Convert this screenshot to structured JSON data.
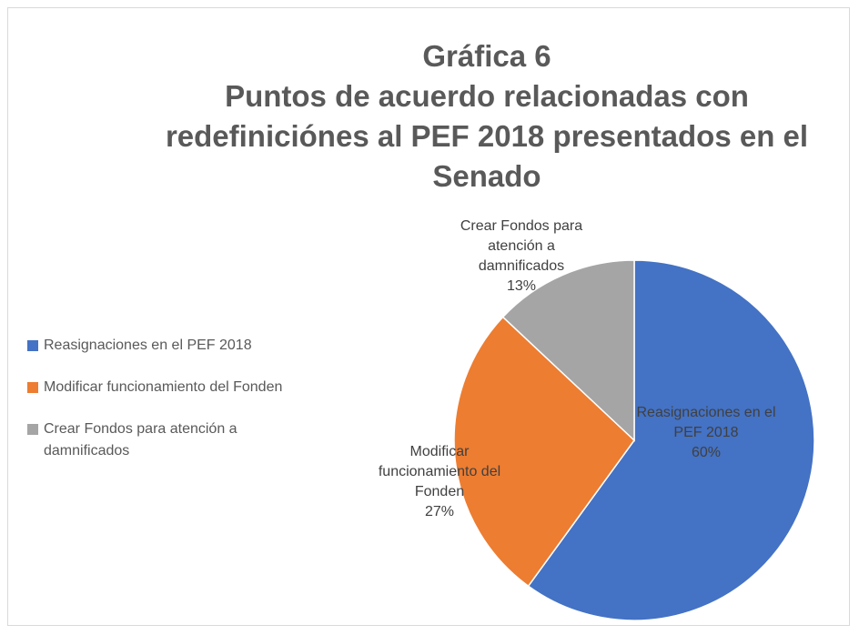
{
  "chart_data": {
    "type": "pie",
    "title": "Gráfica 6",
    "subtitle": "Puntos de acuerdo relacionadas con redefiniciónes al PEF 2018 presentados en el Senado",
    "categories": [
      "Reasignaciones en el PEF 2018",
      "Modificar funcionamiento del Fonden",
      "Crear Fondos para atención a damnificados"
    ],
    "values": [
      60,
      27,
      13
    ],
    "value_labels": [
      "60%",
      "27%",
      "13%"
    ],
    "colors": [
      "#4472c4",
      "#ed7d31",
      "#a5a5a5"
    ],
    "legend": "left"
  }
}
